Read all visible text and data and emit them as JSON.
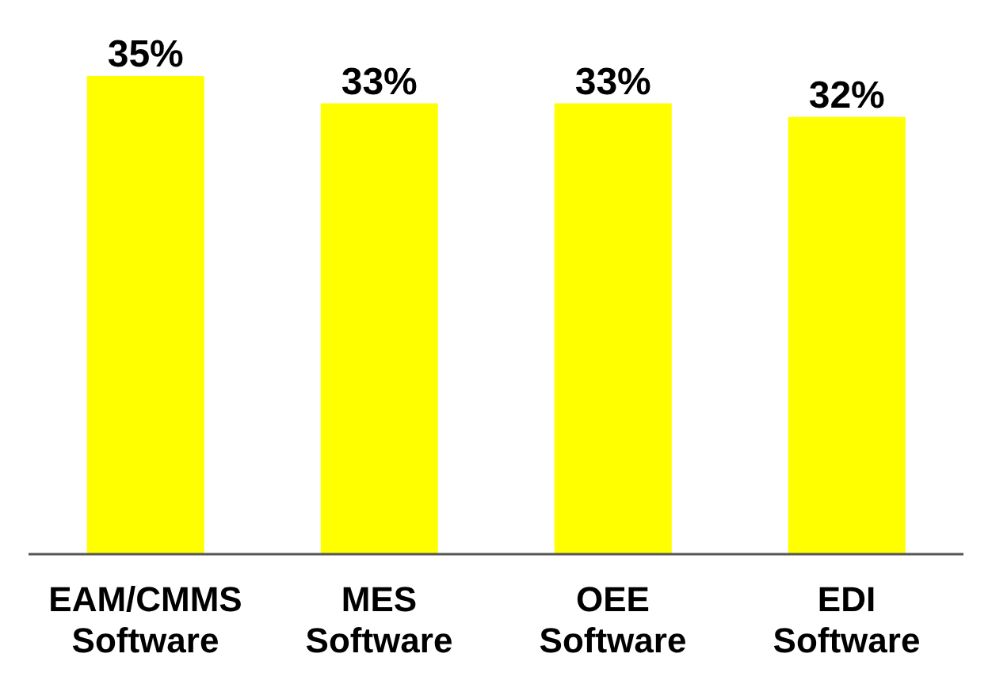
{
  "chart_data": {
    "type": "bar",
    "categories": [
      "EAM/CMMS Software",
      "MES Software",
      "OEE Software",
      "EDI Software"
    ],
    "values": [
      35,
      33,
      33,
      32
    ],
    "value_labels": [
      "35%",
      "33%",
      "33%",
      "32%"
    ],
    "color": "#ffff00",
    "tick_labels": "x",
    "grid": false,
    "legend": false
  }
}
